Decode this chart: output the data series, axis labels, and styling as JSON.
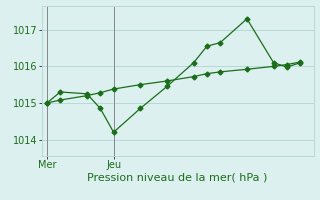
{
  "line1_x": [
    0,
    0.5,
    1.5,
    2,
    2.5,
    3.5,
    4.5,
    5.5,
    6,
    6.5,
    7.5,
    8.5,
    9,
    9.5
  ],
  "line1_y": [
    1015.0,
    1015.3,
    1015.25,
    1014.85,
    1014.2,
    1014.85,
    1015.45,
    1016.1,
    1016.55,
    1016.65,
    1017.3,
    1016.1,
    1015.98,
    1016.1
  ],
  "line2_x": [
    0,
    0.5,
    1.5,
    2,
    2.5,
    3.5,
    4.5,
    5.5,
    6,
    6.5,
    7.5,
    8.5,
    9,
    9.5
  ],
  "line2_y": [
    1015.0,
    1015.08,
    1015.2,
    1015.28,
    1015.38,
    1015.5,
    1015.6,
    1015.72,
    1015.8,
    1015.85,
    1015.92,
    1016.0,
    1016.05,
    1016.12
  ],
  "line_color": "#1a6e1a",
  "marker": "D",
  "marker_size": 2.5,
  "bg_color": "#ddf0f0",
  "grid_color": "#b8d8d8",
  "xlabel": "Pression niveau de la mer( hPa )",
  "yticks": [
    1014,
    1015,
    1016,
    1017
  ],
  "xlim": [
    -0.2,
    10.0
  ],
  "ylim": [
    1013.55,
    1017.65
  ],
  "mer_x": 0,
  "jeu_x": 2.5,
  "vline_color": "#888888",
  "label_fontsize": 7,
  "xlabel_fontsize": 8
}
